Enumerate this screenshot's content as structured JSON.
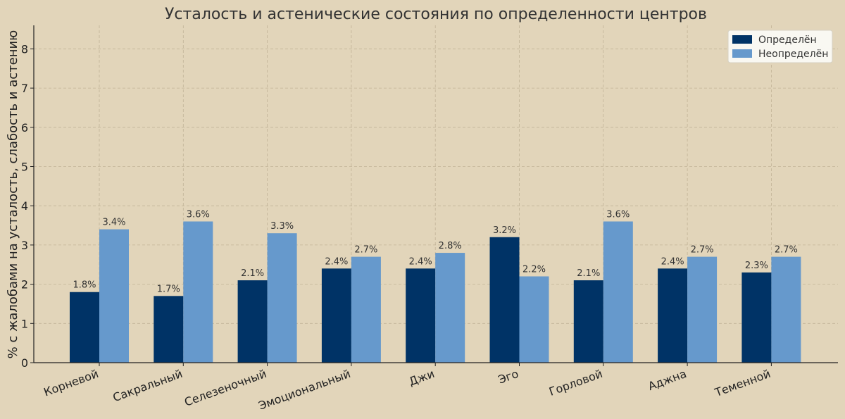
{
  "chart_data": {
    "type": "bar",
    "title": "Усталость и астенические состояния по определенности центров",
    "xlabel": "",
    "ylabel": "% с жалобами на усталость, слабость и астению",
    "categories": [
      "Корневой",
      "Сакральный",
      "Селезеночный",
      "Эмоциональный",
      "Джи",
      "Эго",
      "Горловой",
      "Аджна",
      "Теменной"
    ],
    "series": [
      {
        "name": "Определён",
        "color": "#003366",
        "values": [
          1.8,
          1.7,
          2.1,
          2.4,
          2.4,
          3.2,
          2.1,
          2.4,
          2.3
        ],
        "labels": [
          "1.8%",
          "1.7%",
          "2.1%",
          "2.4%",
          "2.4%",
          "3.2%",
          "2.1%",
          "2.4%",
          "2.3%"
        ]
      },
      {
        "name": "Неопределён",
        "color": "#6699cc",
        "values": [
          3.4,
          3.6,
          3.3,
          2.7,
          2.8,
          2.2,
          3.6,
          2.7,
          2.7
        ],
        "labels": [
          "3.4%",
          "3.6%",
          "3.3%",
          "2.7%",
          "2.8%",
          "2.2%",
          "3.6%",
          "2.7%",
          "2.7%"
        ]
      }
    ],
    "ylim": [
      0,
      8.6
    ],
    "yticks": [
      "0",
      "1",
      "2",
      "3",
      "4",
      "5",
      "6",
      "7",
      "8"
    ],
    "grid": true,
    "legend_position": "top-right"
  }
}
